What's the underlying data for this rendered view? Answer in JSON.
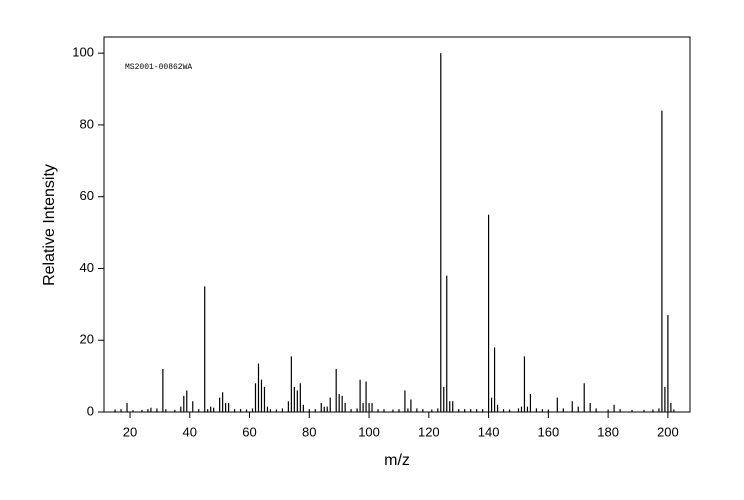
{
  "chart_data": {
    "type": "stem",
    "annotation": "MS2001-00862WA",
    "xlabel": "m/z",
    "ylabel": "Relative Intensity",
    "color": "#000000",
    "xlim": [
      11.3,
      207.4
    ],
    "ylim": [
      0,
      104.5
    ],
    "xticks": [
      20,
      40,
      60,
      80,
      100,
      120,
      140,
      160,
      180,
      200
    ],
    "yticks": [
      0,
      20,
      40,
      60,
      80,
      100
    ],
    "x": [
      15,
      17,
      19,
      21,
      24,
      26,
      27,
      29,
      31,
      32,
      35,
      37,
      38,
      39,
      41,
      43,
      45,
      46,
      47,
      48,
      50,
      51,
      52,
      53,
      55,
      57,
      59,
      61,
      62,
      63,
      64,
      65,
      66,
      67,
      69,
      71,
      73,
      74,
      75,
      76,
      77,
      78,
      80,
      82,
      84,
      85,
      86,
      87,
      89,
      90,
      91,
      92,
      94,
      96,
      97,
      98,
      99,
      100,
      101,
      103,
      105,
      108,
      110,
      112,
      113,
      114,
      116,
      118,
      121,
      123,
      124,
      125,
      126,
      127,
      128,
      130,
      132,
      134,
      136,
      138,
      140,
      141,
      142,
      143,
      145,
      147,
      150,
      151,
      152,
      153,
      154,
      156,
      158,
      160,
      163,
      165,
      168,
      170,
      172,
      174,
      176,
      180,
      182,
      184,
      188,
      192,
      195,
      197,
      198,
      199,
      200,
      201,
      202
    ],
    "values": [
      0.7,
      0.8,
      2.5,
      0.5,
      0.6,
      0.8,
      1.2,
      1,
      12,
      0.8,
      0.6,
      1.5,
      4.5,
      6,
      3,
      0.8,
      35,
      0.8,
      1.5,
      1.2,
      4,
      5.5,
      2.5,
      2.5,
      0.8,
      0.8,
      0.7,
      1,
      8,
      13.5,
      9,
      7,
      1.5,
      0.8,
      0.7,
      1,
      3,
      15.5,
      7,
      6,
      8,
      2,
      0.8,
      0.8,
      2.5,
      1.5,
      1.5,
      4,
      12,
      5,
      4.5,
      2.5,
      0.8,
      1,
      9,
      2.5,
      8.5,
      2.5,
      2.5,
      0.8,
      0.8,
      0.7,
      0.8,
      6,
      1,
      3.5,
      1,
      0.8,
      0.7,
      1,
      100,
      7,
      38,
      3,
      3,
      0.8,
      0.8,
      0.8,
      0.8,
      0.8,
      55,
      4,
      18,
      2,
      0.8,
      0.7,
      1,
      1.5,
      15.5,
      1.5,
      5,
      1,
      0.8,
      0.7,
      4,
      1,
      3,
      1.5,
      8,
      2.5,
      1,
      0.7,
      2,
      0.8,
      0.6,
      0.6,
      0.7,
      1,
      84,
      7,
      27,
      2.5,
      0.7
    ]
  }
}
